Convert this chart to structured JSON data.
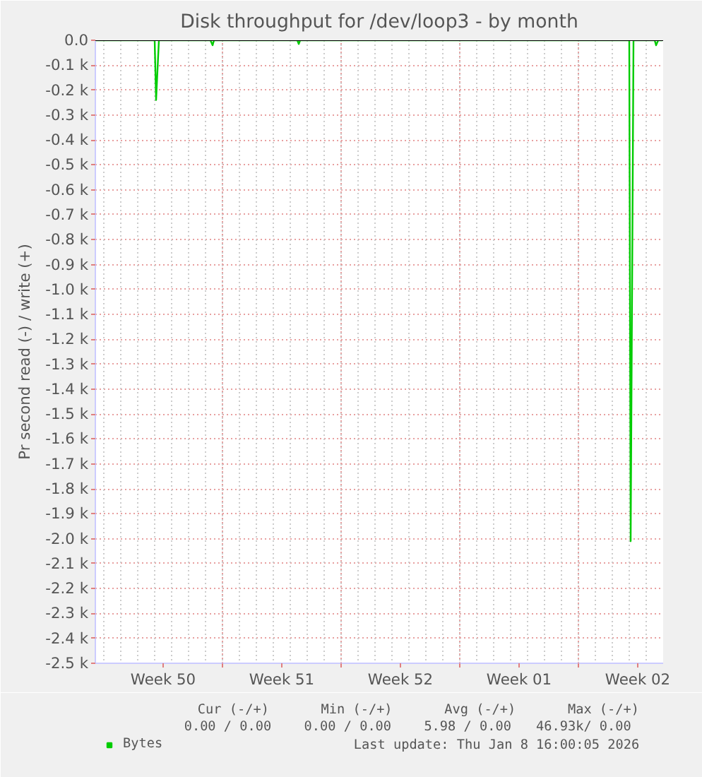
{
  "chart_data": {
    "type": "line",
    "title": "Disk throughput for /dev/loop3 - by month",
    "ylabel": "Pr second read (-) / write (+)",
    "series": [
      {
        "name": "Bytes",
        "color": "#00cc00",
        "x": [
          "2025-12-07T12:00",
          "2025-12-11T00:00",
          "2025-12-11T02:00",
          "2025-12-11T06:00",
          "2025-12-14T07:00",
          "2025-12-14T10:00",
          "2025-12-14T12:00",
          "2025-12-19T10:00",
          "2025-12-19T12:00",
          "2025-12-19T14:00",
          "2026-01-08T00:00",
          "2026-01-08T02:00",
          "2026-01-08T06:00",
          "2026-01-09T12:00",
          "2026-01-09T14:00",
          "2026-01-09T17:00",
          "2026-01-09T23:00"
        ],
        "values": [
          0,
          0,
          -240,
          0,
          0,
          -20,
          0,
          0,
          -15,
          0,
          0,
          -2010,
          0,
          0,
          -20,
          0,
          0
        ]
      }
    ],
    "xlim": [
      "2025-12-07T12:00",
      "2026-01-10T00:00"
    ],
    "xticks": [
      {
        "value": "2025-12-11T12:00",
        "label": "Week 50"
      },
      {
        "value": "2025-12-18T12:00",
        "label": "Week 51"
      },
      {
        "value": "2025-12-25T12:00",
        "label": "Week 52"
      },
      {
        "value": "2026-01-01T12:00",
        "label": "Week 01"
      },
      {
        "value": "2026-01-08T12:00",
        "label": "Week 02"
      },
      {
        "value": "2025-12-15",
        "label": null
      },
      {
        "value": "2025-12-22",
        "label": null
      },
      {
        "value": "2025-12-29",
        "label": null
      },
      {
        "value": "2026-01-05",
        "label": null
      }
    ],
    "ylim": [
      -2500,
      0
    ],
    "yticks": [
      {
        "value": 0,
        "label": "0.0"
      },
      {
        "value": -100,
        "label": "-0.1 k"
      },
      {
        "value": -200,
        "label": "-0.2 k"
      },
      {
        "value": -300,
        "label": "-0.3 k"
      },
      {
        "value": -400,
        "label": "-0.4 k"
      },
      {
        "value": -500,
        "label": "-0.5 k"
      },
      {
        "value": -600,
        "label": "-0.6 k"
      },
      {
        "value": -700,
        "label": "-0.7 k"
      },
      {
        "value": -800,
        "label": "-0.8 k"
      },
      {
        "value": -900,
        "label": "-0.9 k"
      },
      {
        "value": -1000,
        "label": "-1.0 k"
      },
      {
        "value": -1100,
        "label": "-1.1 k"
      },
      {
        "value": -1200,
        "label": "-1.2 k"
      },
      {
        "value": -1300,
        "label": "-1.3 k"
      },
      {
        "value": -1400,
        "label": "-1.4 k"
      },
      {
        "value": -1500,
        "label": "-1.5 k"
      },
      {
        "value": -1600,
        "label": "-1.6 k"
      },
      {
        "value": -1700,
        "label": "-1.7 k"
      },
      {
        "value": -1800,
        "label": "-1.8 k"
      },
      {
        "value": -1900,
        "label": "-1.9 k"
      },
      {
        "value": -2000,
        "label": "-2.0 k"
      },
      {
        "value": -2100,
        "label": "-2.1 k"
      },
      {
        "value": -2200,
        "label": "-2.2 k"
      },
      {
        "value": -2300,
        "label": "-2.3 k"
      },
      {
        "value": -2400,
        "label": "-2.4 k"
      },
      {
        "value": -2500,
        "label": "-2.5 k"
      }
    ],
    "ref_lines": [
      {
        "axis": "y",
        "value": 0,
        "color": "#000000"
      }
    ],
    "grid": true,
    "legend": "bottom left",
    "marker": "none",
    "line_style": "solid",
    "annotations": [
      "Cur (-/+)",
      "Min (-/+)",
      "Avg (-/+)",
      "Max (-/+)",
      "0.00 /  0.00",
      "0.00 /  0.00",
      "5.98 /  0.00",
      "46.93k/  0.00",
      "Last update: Thu Jan  8 16:00:05 2026"
    ]
  }
}
